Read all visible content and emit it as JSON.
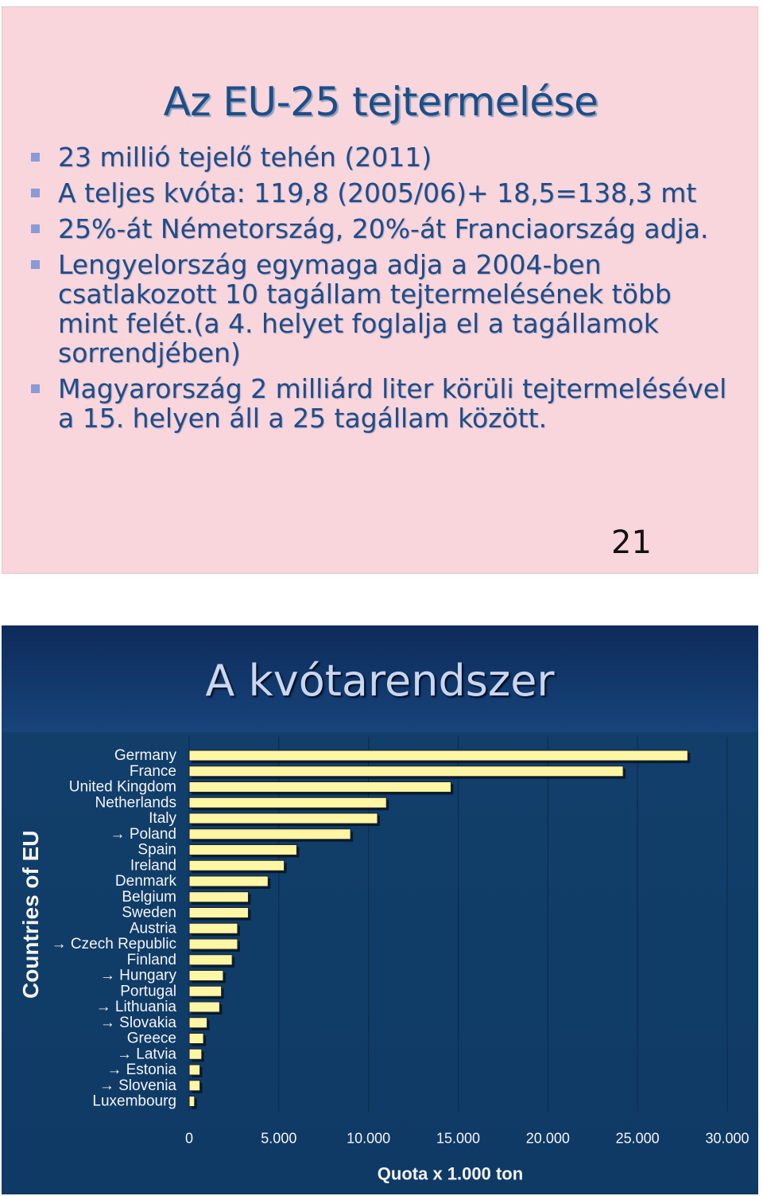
{
  "slide1": {
    "title": "Az EU-25 tejtermelése",
    "bullets": [
      "23 millió tejelő tehén (2011)",
      "A teljes kvóta: 119,8 (2005/06)+ 18,5=138,3 mt",
      "25%-át Németország, 20%-át Franciaország adja.",
      "Lengyelország egymaga adja a 2004-ben csatlakozott 10 tagállam tejtermelésének több mint felét.(a 4. helyet foglalja el a tagállamok sorrendjében)",
      "Magyarország 2 milliárd liter körüli tejtermelésével a 15. helyen áll a 25 tagállam között."
    ],
    "page_number": "21",
    "colors": {
      "background": "#f8d6dc",
      "text": "#1f4d86",
      "bullet": "#8a9ad6"
    }
  },
  "slide2": {
    "title": "A kvótarendszer",
    "colors": {
      "background": "#123f6b",
      "bar_fill": "#fdf6a5",
      "bar_stroke": "#222222",
      "text": "#f5f5f5"
    }
  },
  "chart_data": {
    "type": "bar",
    "orientation": "horizontal",
    "xlabel": "Quota x 1.000 ton",
    "ylabel": "Countries of EU",
    "xlim": [
      0,
      30000
    ],
    "xticks": [
      "0",
      "5.000",
      "10.000",
      "15.000",
      "20.000",
      "25.000",
      "30.000"
    ],
    "grid": true,
    "categories": [
      "Germany",
      "France",
      "United Kingdom",
      "Netherlands",
      "Italy",
      "→ Poland",
      "Spain",
      "Ireland",
      "Denmark",
      "Belgium",
      "Sweden",
      "Austria",
      "→ Czech Republic",
      "Finland",
      "→ Hungary",
      "Portugal",
      "→ Lithuania",
      "→ Slovakia",
      "Greece",
      "→ Latvia",
      "→ Estonia",
      "→ Slovenia",
      "Luxembourg"
    ],
    "values": [
      27800,
      24200,
      14600,
      11000,
      10500,
      9000,
      6000,
      5300,
      4400,
      3300,
      3300,
      2700,
      2700,
      2400,
      1900,
      1800,
      1700,
      1000,
      800,
      700,
      600,
      600,
      300
    ]
  }
}
